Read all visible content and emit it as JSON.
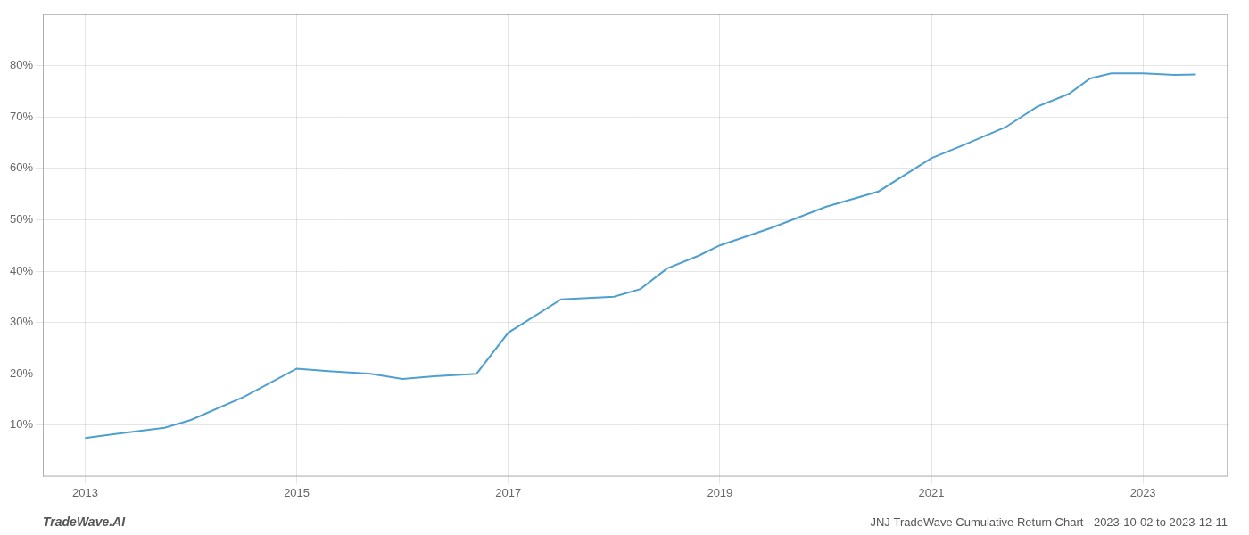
{
  "chart_data": {
    "type": "line",
    "title": "JNJ TradeWave Cumulative Return Chart - 2023-10-02 to 2023-12-11",
    "annotations": [
      "TradeWave.AI"
    ],
    "x": [
      2013.0,
      2013.25,
      2013.75,
      2014.0,
      2014.5,
      2015.0,
      2015.3,
      2015.7,
      2016.0,
      2016.3,
      2016.7,
      2017.0,
      2017.5,
      2018.0,
      2018.25,
      2018.5,
      2018.8,
      2019.0,
      2019.5,
      2020.0,
      2020.5,
      2021.0,
      2021.3,
      2021.7,
      2022.0,
      2022.3,
      2022.5,
      2022.7,
      2022.9,
      2023.0,
      2023.3,
      2023.5
    ],
    "values": [
      7.5,
      8.2,
      9.5,
      11.0,
      15.5,
      21.0,
      20.5,
      20.0,
      19.0,
      19.5,
      20.0,
      28.0,
      34.5,
      35.0,
      36.5,
      40.5,
      43.0,
      45.0,
      48.5,
      52.5,
      55.5,
      62.0,
      64.5,
      68.0,
      72.0,
      74.5,
      77.5,
      78.5,
      78.5,
      78.5,
      78.2,
      78.3
    ],
    "color": "#4f9fcf",
    "xlim": [
      2012.6,
      2023.8
    ],
    "ylim": [
      0,
      90
    ],
    "xticks": [
      2013,
      2015,
      2017,
      2019,
      2021,
      2023
    ],
    "yticks": [
      {
        "value": 10,
        "label": "10%"
      },
      {
        "value": 20,
        "label": "20%"
      },
      {
        "value": 30,
        "label": "30%"
      },
      {
        "value": 40,
        "label": "40%"
      },
      {
        "value": 50,
        "label": "50%"
      },
      {
        "value": 60,
        "label": "60%"
      },
      {
        "value": 70,
        "label": "70%"
      },
      {
        "value": 80,
        "label": "80%"
      }
    ],
    "grid": true
  }
}
